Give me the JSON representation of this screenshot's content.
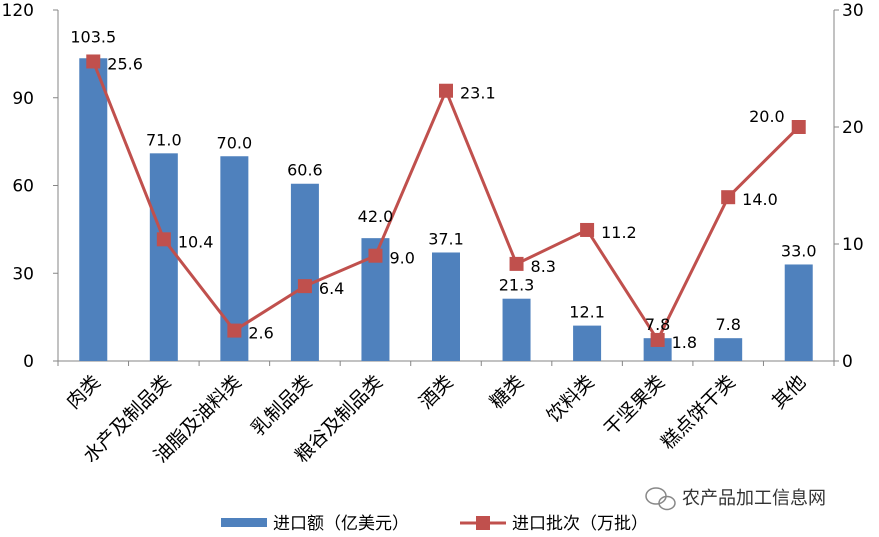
{
  "chart_data": {
    "type": "bar",
    "categories": [
      "肉类",
      "水产及制品类",
      "油脂及油料类",
      "乳制品类",
      "粮谷及制品类",
      "酒类",
      "糖类",
      "饮料类",
      "干坚果类",
      "糕点饼干类",
      "其他"
    ],
    "series": [
      {
        "name": "进口额（亿美元）",
        "type": "bar",
        "axis": "left",
        "values": [
          103.5,
          71.0,
          70.0,
          60.6,
          42.0,
          37.1,
          21.3,
          12.1,
          7.8,
          7.8,
          33.0
        ],
        "labels": [
          "103.5",
          "71.0",
          "70.0",
          "60.6",
          "42.0",
          "37.1",
          "21.3",
          "12.1",
          "7.8",
          "7.8",
          "33.0"
        ],
        "color": "#4F81BD"
      },
      {
        "name": "进口批次（万批）",
        "type": "line",
        "axis": "right",
        "values": [
          25.6,
          10.4,
          2.6,
          6.4,
          9.0,
          23.1,
          8.3,
          11.2,
          1.8,
          14.0,
          20.0
        ],
        "labels": [
          "25.6",
          "10.4",
          "2.6",
          "6.4",
          "9.0",
          "23.1",
          "8.3",
          "11.2",
          "1.8",
          "14.0",
          "20.0"
        ],
        "color": "#C0504D"
      }
    ],
    "y_left": {
      "range": [
        0,
        120
      ],
      "ticks": [
        "0",
        "30",
        "60",
        "90",
        "120"
      ]
    },
    "y_right": {
      "range": [
        0,
        30
      ],
      "ticks": [
        "0",
        "10",
        "20",
        "30"
      ]
    },
    "legend": "bottom",
    "grid": false
  },
  "watermark": {
    "text": "农产品加工信息网",
    "icon": "wechat-icon"
  }
}
